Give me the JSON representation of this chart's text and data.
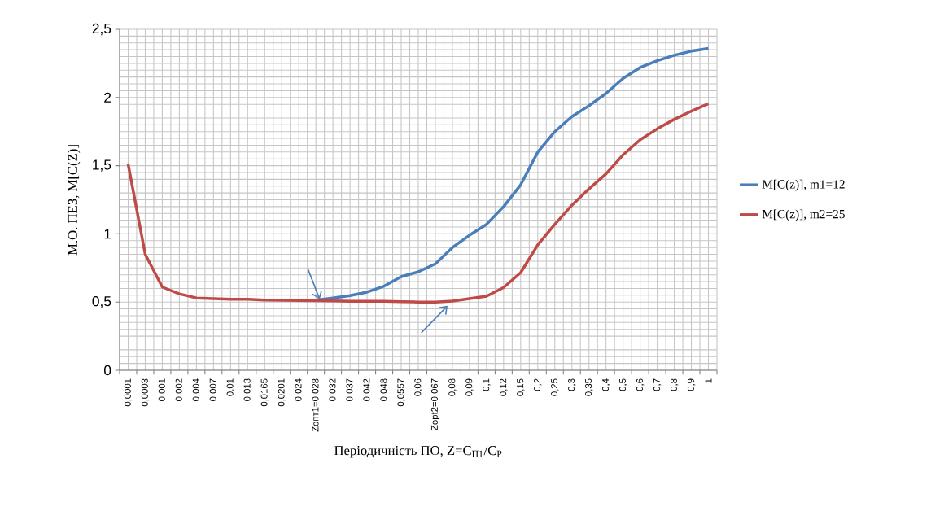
{
  "chart_data": {
    "type": "line",
    "xlabel": "Періодичність ПО, Z=C$_{П1}$/C$_{Р}$",
    "ylabel": "М.О. ПЕЗ, M[C(Z)]",
    "categories": [
      "0,0001",
      "0,0003",
      "0,001",
      "0,002",
      "0,004",
      "0,007",
      "0,01",
      "0,013",
      "0,0165",
      "0,0201",
      "0,024",
      "Zопт1=0,028",
      "0,032",
      "0,037",
      "0,042",
      "0,048",
      "0,0557",
      "0,06",
      "Zopt2=0,067",
      "0,08",
      "0,09",
      "0,1",
      "0,12",
      "0,15",
      "0,2",
      "0,25",
      "0,3",
      "0,35",
      "0,4",
      "0,5",
      "0,6",
      "0,7",
      "0,8",
      "0,9",
      "1"
    ],
    "series": [
      {
        "name": "M[C(z)], m1=12",
        "color": "#4a7ebb",
        "values": [
          null,
          null,
          null,
          null,
          null,
          null,
          null,
          null,
          null,
          null,
          null,
          0.515,
          0.53,
          0.547,
          0.573,
          0.617,
          0.686,
          0.722,
          0.78,
          0.9,
          0.99,
          1.07,
          1.2,
          1.36,
          1.6,
          1.75,
          1.86,
          1.94,
          2.03,
          2.14,
          2.22,
          2.27,
          2.31,
          2.34,
          2.36
        ]
      },
      {
        "name": "M[C(z)], m2=25",
        "color": "#be4b48",
        "values": [
          1.51,
          0.85,
          0.61,
          0.56,
          0.53,
          0.525,
          0.52,
          0.52,
          0.515,
          0.513,
          0.512,
          0.51,
          0.508,
          0.505,
          0.505,
          0.505,
          0.503,
          0.5,
          0.5,
          0.507,
          0.525,
          0.543,
          0.607,
          0.716,
          0.92,
          1.07,
          1.21,
          1.33,
          1.44,
          1.58,
          1.69,
          1.77,
          1.84,
          1.9,
          1.955
        ]
      }
    ],
    "ylim": [
      0,
      2.5
    ],
    "yticks": [
      0,
      {
        "value": 0.5,
        "label": "0,5"
      },
      1,
      {
        "value": 1.5,
        "label": "1,5"
      },
      2,
      {
        "value": 2.5,
        "label": "2,5"
      }
    ],
    "grid": true,
    "legend": "right",
    "line_style": "solid",
    "marker": "none"
  }
}
